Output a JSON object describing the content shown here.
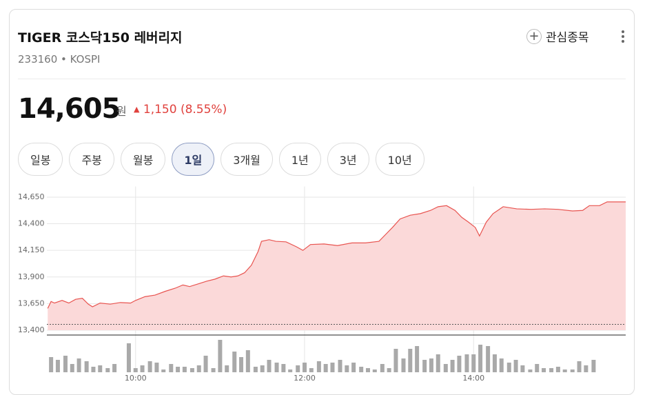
{
  "header": {
    "title": "TIGER 코스닥150 레버리지",
    "code": "233160",
    "market": "KOSPI",
    "watchlist": "관심종목"
  },
  "quote": {
    "price": "14,605",
    "unit": "원",
    "change": "1,150",
    "change_pct": "(8.55%)"
  },
  "tabs": {
    "items": [
      "일봉",
      "주봉",
      "월봉",
      "1일",
      "3개월",
      "1년",
      "3년",
      "10년"
    ],
    "active": 3
  },
  "chart_data": {
    "type": "area",
    "color": "#e8534f",
    "fill": "#fbd9d9",
    "grid": true,
    "x": [
      8.96,
      9.0,
      9.04,
      9.13,
      9.21,
      9.29,
      9.37,
      9.44,
      9.49,
      9.58,
      9.7,
      9.82,
      9.94,
      10.0,
      10.11,
      10.23,
      10.35,
      10.47,
      10.56,
      10.64,
      10.76,
      10.84,
      10.94,
      11.04,
      11.13,
      11.21,
      11.29,
      11.37,
      11.45,
      11.49,
      11.58,
      11.66,
      11.78,
      11.9,
      11.98,
      12.07,
      12.23,
      12.39,
      12.56,
      12.72,
      12.88,
      12.96,
      13.04,
      13.13,
      13.25,
      13.37,
      13.49,
      13.58,
      13.68,
      13.78,
      13.86,
      13.94,
      14.02,
      14.07,
      14.15,
      14.23,
      14.35,
      14.51,
      14.68,
      14.84,
      15.0,
      15.17,
      15.29,
      15.37,
      15.49,
      15.58,
      15.8
    ],
    "values": [
      13605,
      13670,
      13655,
      13680,
      13655,
      13690,
      13700,
      13645,
      13620,
      13655,
      13645,
      13660,
      13655,
      13680,
      13715,
      13730,
      13765,
      13795,
      13825,
      13810,
      13840,
      13860,
      13880,
      13910,
      13900,
      13910,
      13940,
      14010,
      14140,
      14235,
      14250,
      14235,
      14230,
      14185,
      14150,
      14205,
      14210,
      14195,
      14220,
      14220,
      14235,
      14300,
      14365,
      14445,
      14480,
      14495,
      14525,
      14560,
      14570,
      14525,
      14460,
      14415,
      14365,
      14285,
      14415,
      14495,
      14560,
      14540,
      14535,
      14540,
      14535,
      14520,
      14525,
      14570,
      14570,
      14605,
      14605
    ],
    "reference_line": 13455,
    "xlim": [
      8.95,
      15.8
    ],
    "xticks": [
      {
        "value": 10,
        "label": "10:00"
      },
      {
        "value": 12,
        "label": "12:00"
      },
      {
        "value": 14,
        "label": "14:00"
      }
    ],
    "ylim": [
      13400,
      14750
    ],
    "yticks": [
      {
        "value": 13400,
        "label": "13,400"
      },
      {
        "value": 13650,
        "label": "13,650"
      },
      {
        "value": 13900,
        "label": "13,900"
      },
      {
        "value": 14150,
        "label": "14,150"
      },
      {
        "value": 14400,
        "label": "14,400"
      },
      {
        "value": 14650,
        "label": "14,650"
      }
    ],
    "volume": {
      "color": "#a9a9a9",
      "ylim": [
        0,
        54
      ],
      "x": [
        9,
        9.08,
        9.17,
        9.25,
        9.33,
        9.42,
        9.5,
        9.58,
        9.67,
        9.75,
        9.83,
        9.92,
        10,
        10.08,
        10.17,
        10.25,
        10.33,
        10.42,
        10.5,
        10.58,
        10.67,
        10.75,
        10.83,
        10.92,
        11,
        11.08,
        11.17,
        11.25,
        11.33,
        11.42,
        11.5,
        11.58,
        11.67,
        11.75,
        11.83,
        11.92,
        12,
        12.08,
        12.17,
        12.25,
        12.33,
        12.42,
        12.5,
        12.58,
        12.67,
        12.75,
        12.83,
        12.92,
        13,
        13.08,
        13.17,
        13.25,
        13.33,
        13.42,
        13.5,
        13.58,
        13.67,
        13.75,
        13.83,
        13.92,
        14,
        14.08,
        14.17,
        14.25,
        14.33,
        14.42,
        14.5,
        14.58,
        14.67,
        14.75,
        14.83,
        14.92,
        15,
        15.08,
        15.17,
        15.25,
        15.33,
        15.42,
        15.5
      ],
      "values": [
        22,
        18,
        24,
        12,
        20,
        16,
        8,
        10,
        6,
        12,
        0,
        42,
        6,
        10,
        16,
        14,
        4,
        12,
        8,
        8,
        6,
        10,
        24,
        6,
        47,
        10,
        30,
        22,
        32,
        8,
        10,
        18,
        14,
        12,
        4,
        10,
        14,
        6,
        16,
        12,
        14,
        18,
        10,
        14,
        8,
        6,
        4,
        12,
        6,
        34,
        20,
        34,
        38,
        18,
        20,
        26,
        12,
        18,
        24,
        26,
        26,
        40,
        38,
        26,
        20,
        14,
        18,
        10,
        4,
        12,
        6,
        6,
        8,
        4,
        4,
        16,
        10,
        18,
        0
      ]
    }
  }
}
